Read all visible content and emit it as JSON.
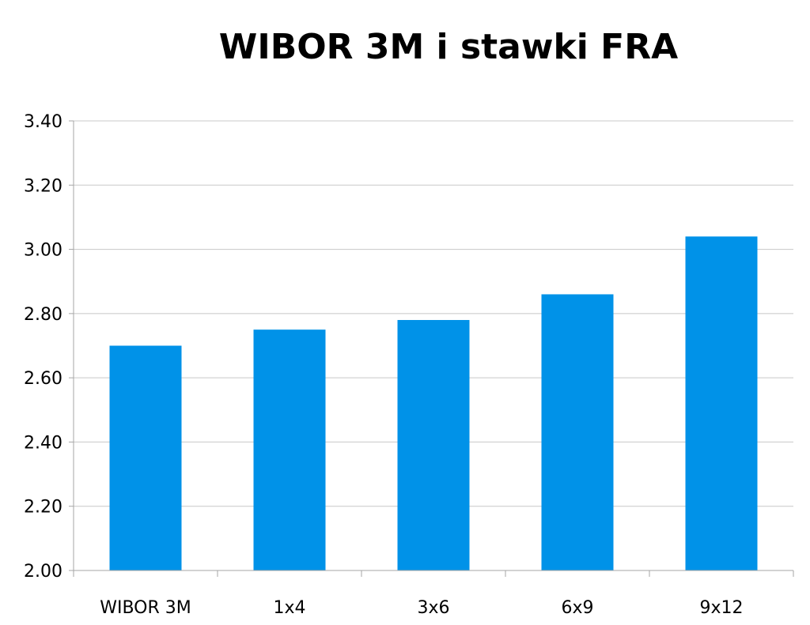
{
  "chart_data": {
    "type": "bar",
    "title": "WIBOR 3M i stawki FRA",
    "categories": [
      "WIBOR 3M",
      "1x4",
      "3x6",
      "6x9",
      "9x12"
    ],
    "values": [
      2.7,
      2.75,
      2.78,
      2.86,
      3.04
    ],
    "ylim": [
      2.0,
      3.4
    ],
    "yticks": [
      "2.00",
      "2.20",
      "2.40",
      "2.60",
      "2.80",
      "3.00",
      "3.20",
      "3.40"
    ],
    "grid": true,
    "legend": false,
    "colors": {
      "bar": "#0092e8",
      "grid": "#c8c8c8",
      "axis": "#a6a6a6"
    }
  }
}
